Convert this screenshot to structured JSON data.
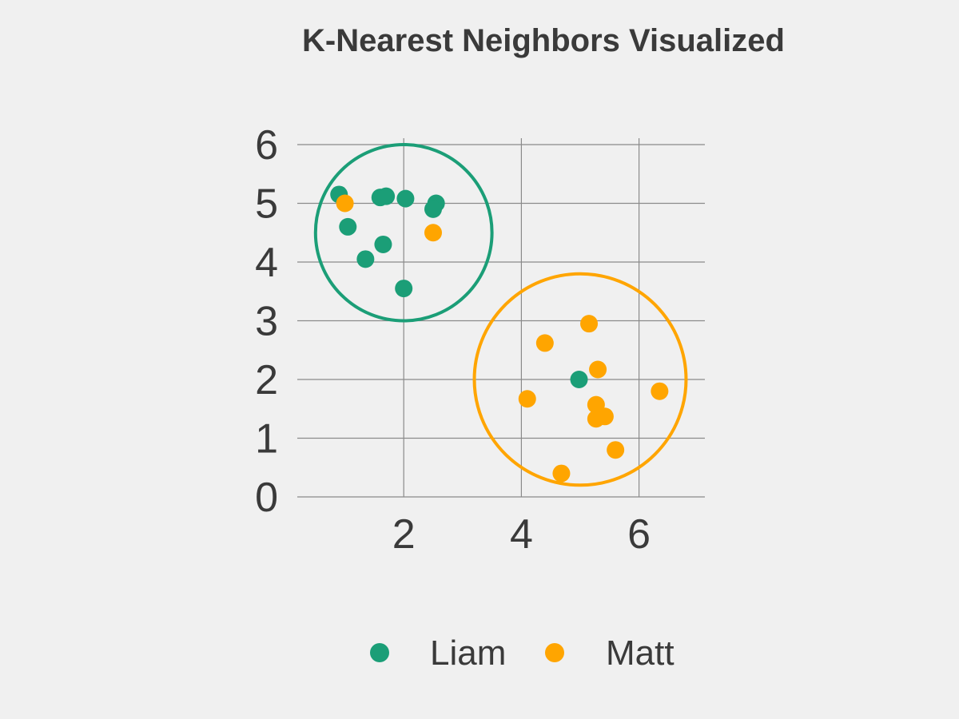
{
  "chart_data": {
    "type": "scatter",
    "title": "K-Nearest Neighbors Visualized",
    "xlabel": "",
    "ylabel": "",
    "xlim": [
      0.2,
      7.1
    ],
    "ylim": [
      0,
      6.1
    ],
    "x_ticks": [
      2,
      4,
      6
    ],
    "y_ticks": [
      0,
      1,
      2,
      3,
      4,
      5,
      6
    ],
    "grid": true,
    "legend_position": "bottom",
    "series": [
      {
        "name": "Liam",
        "color": "#1b9e77",
        "points": [
          [
            0.9,
            5.15
          ],
          [
            1.6,
            5.1
          ],
          [
            1.7,
            5.12
          ],
          [
            2.03,
            5.08
          ],
          [
            2.55,
            5.0
          ],
          [
            2.5,
            4.9
          ],
          [
            1.05,
            4.6
          ],
          [
            1.65,
            4.3
          ],
          [
            1.35,
            4.05
          ],
          [
            2.0,
            3.55
          ],
          [
            4.98,
            2.0
          ]
        ]
      },
      {
        "name": "Matt",
        "color": "#ffa500",
        "points": [
          [
            1.0,
            5.0
          ],
          [
            2.5,
            4.5
          ],
          [
            5.15,
            2.95
          ],
          [
            4.4,
            2.62
          ],
          [
            5.3,
            2.17
          ],
          [
            6.35,
            1.8
          ],
          [
            4.1,
            1.67
          ],
          [
            5.27,
            1.57
          ],
          [
            5.42,
            1.37
          ],
          [
            5.27,
            1.33
          ],
          [
            5.6,
            0.8
          ],
          [
            4.68,
            0.4
          ]
        ]
      }
    ],
    "annotations": [
      {
        "type": "circle",
        "center": [
          2.0,
          4.5
        ],
        "radius": 1.5,
        "color": "#1b9e77"
      },
      {
        "type": "circle",
        "center": [
          5.0,
          2.0
        ],
        "radius": 1.8,
        "color": "#ffa500"
      }
    ]
  }
}
